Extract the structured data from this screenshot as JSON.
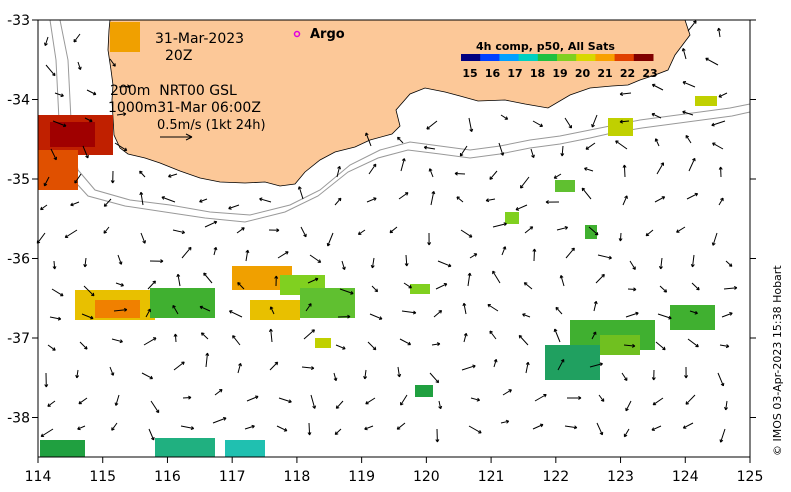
{
  "map": {
    "date_label": "31-Mar-2023",
    "time_label": "20Z",
    "argo_label": "Argo",
    "gsl_line1": "200m  NRT00 GSL",
    "gsl_line2": "1000m31-Mar 06:00Z",
    "scale_label": "0.5m/s (1kt 24h)",
    "colorbar_title": "4h comp, p50, All Sats",
    "colorbar_ticks": [
      "15",
      "16",
      "17",
      "18",
      "19",
      "20",
      "21",
      "22",
      "23"
    ],
    "credit": "© IMOS 03-Apr-2023 15:38 Hobart",
    "x_ticks": [
      "114",
      "115",
      "116",
      "117",
      "118",
      "119",
      "120",
      "121",
      "122",
      "123",
      "124",
      "125"
    ],
    "y_ticks": [
      "-33",
      "-34",
      "-35",
      "-36",
      "-37",
      "-38"
    ],
    "colors": {
      "land": "#fcc898",
      "argo_marker": "#e000e0",
      "colorbar": [
        "#000080",
        "#0040ff",
        "#00a0ff",
        "#00d0c0",
        "#20c040",
        "#80d020",
        "#d8d800",
        "#f8a000",
        "#e04000",
        "#800000"
      ]
    }
  }
}
